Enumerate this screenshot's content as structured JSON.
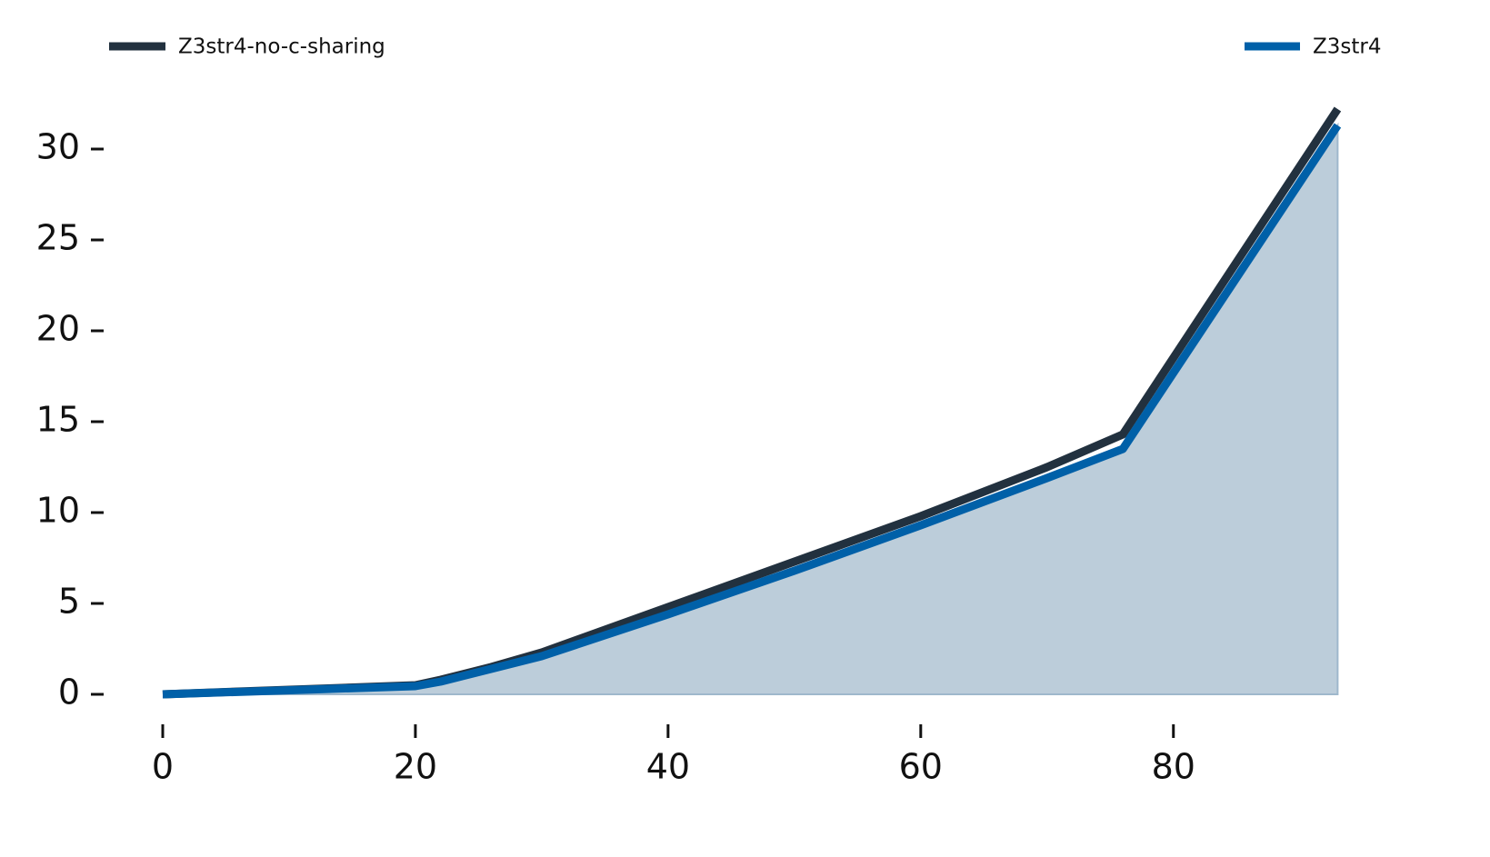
{
  "chart_data": {
    "type": "line",
    "x": [
      0,
      20,
      22,
      26,
      30,
      40,
      50,
      60,
      70,
      76,
      93
    ],
    "series": [
      {
        "name": "Z3str4-no-c-sharing",
        "color": "#22313f",
        "values": [
          0,
          0.5,
          0.8,
          1.5,
          2.3,
          4.8,
          7.3,
          9.8,
          12.5,
          14.3,
          32.2
        ]
      },
      {
        "name": "Z3str4",
        "color": "#0060a8",
        "fill": "#bccdda",
        "values": [
          0,
          0.45,
          0.7,
          1.4,
          2.1,
          4.4,
          6.8,
          9.3,
          11.9,
          13.5,
          31.3
        ]
      }
    ],
    "xlim": [
      -4.5,
      96
    ],
    "ylim": [
      -1.5,
      33.5
    ],
    "xticks": [
      0,
      20,
      40,
      60,
      80
    ],
    "yticks": [
      0,
      5,
      10,
      15,
      20,
      25,
      30
    ],
    "grid": false
  }
}
